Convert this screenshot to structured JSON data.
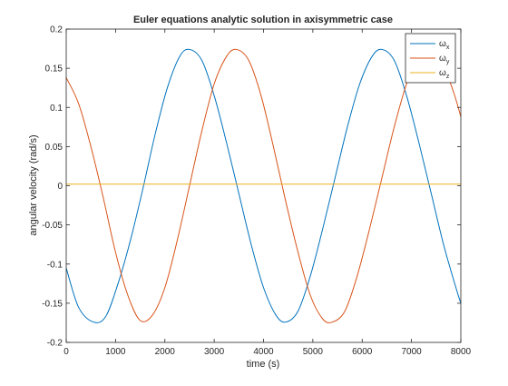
{
  "chart_data": {
    "type": "line",
    "title": "Euler equations analytic solution in axisymmetric case",
    "xlabel": "time (s)",
    "ylabel": "angular velocity (rad/s)",
    "xlim": [
      0,
      8000
    ],
    "ylim": [
      -0.2,
      0.2
    ],
    "xticks": [
      0,
      1000,
      2000,
      3000,
      4000,
      5000,
      6000,
      7000,
      8000
    ],
    "xtick_labels": [
      "0",
      "1000",
      "2000",
      "3000",
      "4000",
      "5000",
      "6000",
      "7000",
      "8000"
    ],
    "yticks": [
      -0.2,
      -0.15,
      -0.1,
      -0.05,
      0,
      0.05,
      0.1,
      0.15,
      0.2
    ],
    "ytick_labels": [
      "-0.2",
      "-0.15",
      "-0.1",
      "-0.05",
      "0",
      "0.05",
      "0.1",
      "0.15",
      "0.2"
    ],
    "grid": false,
    "legend_position": "top-right",
    "series": [
      {
        "name_base": "ω",
        "name_sub": "x",
        "color": "#0072BD",
        "x": [
          0,
          250,
          550,
          800,
          1050,
          1300,
          1550,
          1800,
          2050,
          2300,
          2500,
          2750,
          3000,
          3250,
          3500,
          3750,
          4000,
          4250,
          4450,
          4700,
          4950,
          5200,
          5450,
          5700,
          5950,
          6200,
          6400,
          6650,
          6900,
          7150,
          7400,
          7650,
          7900,
          8000
        ],
        "y": [
          -0.105,
          -0.155,
          -0.174,
          -0.167,
          -0.125,
          -0.07,
          -0.005,
          0.065,
          0.125,
          0.165,
          0.174,
          0.16,
          0.115,
          0.055,
          -0.01,
          -0.075,
          -0.13,
          -0.165,
          -0.174,
          -0.16,
          -0.115,
          -0.055,
          0.01,
          0.075,
          0.13,
          0.165,
          0.174,
          0.16,
          0.115,
          0.055,
          -0.01,
          -0.075,
          -0.13,
          -0.15
        ]
      },
      {
        "name_base": "ω",
        "name_sub": "y",
        "color": "#D95319",
        "x": [
          0,
          250,
          500,
          750,
          1000,
          1250,
          1500,
          1750,
          2000,
          2250,
          2500,
          2750,
          3000,
          3250,
          3450,
          3700,
          3950,
          4200,
          4450,
          4700,
          4950,
          5200,
          5400,
          5650,
          5900,
          6150,
          6400,
          6650,
          6900,
          7150,
          7350,
          7600,
          7850,
          8000
        ],
        "y": [
          0.138,
          0.105,
          0.05,
          -0.015,
          -0.085,
          -0.14,
          -0.172,
          -0.165,
          -0.13,
          -0.07,
          0.0,
          0.07,
          0.13,
          0.165,
          0.174,
          0.16,
          0.115,
          0.05,
          -0.02,
          -0.085,
          -0.14,
          -0.17,
          -0.174,
          -0.16,
          -0.115,
          -0.055,
          0.01,
          0.075,
          0.13,
          0.165,
          0.174,
          0.16,
          0.12,
          0.088
        ]
      },
      {
        "name_base": "ω",
        "name_sub": "z",
        "color": "#EDB120",
        "x": [
          0,
          8000
        ],
        "y": [
          0.002,
          0.002
        ]
      }
    ]
  }
}
